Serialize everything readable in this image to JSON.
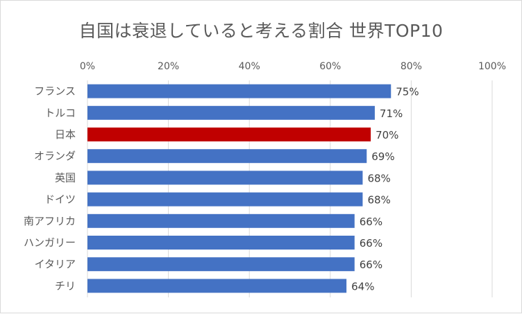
{
  "chart_data": {
    "type": "bar",
    "orientation": "horizontal",
    "title": "自国は衰退していると考える割合 世界TOP10",
    "categories": [
      "フランス",
      "トルコ",
      "日本",
      "オランダ",
      "英国",
      "ドイツ",
      "南アフリカ",
      "ハンガリー",
      "イタリア",
      "チリ"
    ],
    "values": [
      75,
      71,
      70,
      69,
      68,
      68,
      66,
      66,
      66,
      64
    ],
    "data_labels": [
      "75%",
      "71%",
      "70%",
      "69%",
      "68%",
      "68%",
      "66%",
      "66%",
      "66%",
      "64%"
    ],
    "xlim": [
      0,
      100
    ],
    "x_ticks": [
      0,
      20,
      40,
      60,
      80,
      100
    ],
    "x_tick_labels": [
      "0%",
      "20%",
      "40%",
      "60%",
      "80%",
      "100%"
    ],
    "x_axis_position": "top",
    "grid": true,
    "legend": false,
    "colors": {
      "default_bar": "#4472c4",
      "highlight_bar": "#c00000",
      "gridline": "#d9d9d9",
      "text": "#595959",
      "label_text": "#404040"
    },
    "highlight_category": "日本"
  }
}
